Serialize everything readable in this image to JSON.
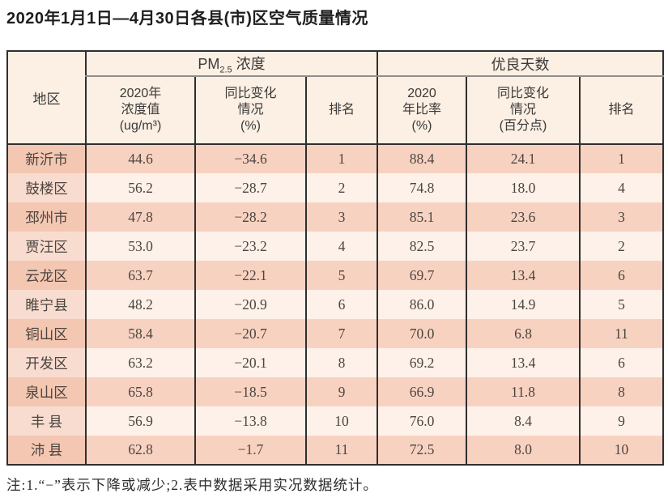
{
  "title": "2020年1月1日—4月30日各县(市)区空气质量情况",
  "table": {
    "header": {
      "region": "地区",
      "pm25_group": {
        "pre": "PM",
        "sub": "2.5",
        "post": " 浓度"
      },
      "good_days_group": "优良天数",
      "subcols": [
        "2020年\n浓度值\n(ug/m³)",
        "同比变化\n情况\n(%)",
        "排名",
        "2020\n年比率\n(%)",
        "同比变化\n情况\n(百分点)",
        "排名"
      ]
    },
    "rows": [
      {
        "region": "新沂市",
        "pm_value": "44.6",
        "pm_change": "−34.6",
        "pm_rank": "1",
        "good_ratio": "88.4",
        "good_change": "24.1",
        "good_rank": "1"
      },
      {
        "region": "鼓楼区",
        "pm_value": "56.2",
        "pm_change": "−28.7",
        "pm_rank": "2",
        "good_ratio": "74.8",
        "good_change": "18.0",
        "good_rank": "4"
      },
      {
        "region": "邳州市",
        "pm_value": "47.8",
        "pm_change": "−28.2",
        "pm_rank": "3",
        "good_ratio": "85.1",
        "good_change": "23.6",
        "good_rank": "3"
      },
      {
        "region": "贾汪区",
        "pm_value": "53.0",
        "pm_change": "−23.2",
        "pm_rank": "4",
        "good_ratio": "82.5",
        "good_change": "23.7",
        "good_rank": "2"
      },
      {
        "region": "云龙区",
        "pm_value": "63.7",
        "pm_change": "−22.1",
        "pm_rank": "5",
        "good_ratio": "69.7",
        "good_change": "13.4",
        "good_rank": "6"
      },
      {
        "region": "睢宁县",
        "pm_value": "48.2",
        "pm_change": "−20.9",
        "pm_rank": "6",
        "good_ratio": "86.0",
        "good_change": "14.9",
        "good_rank": "5"
      },
      {
        "region": "铜山区",
        "pm_value": "58.4",
        "pm_change": "−20.7",
        "pm_rank": "7",
        "good_ratio": "70.0",
        "good_change": "6.8",
        "good_rank": "11"
      },
      {
        "region": "开发区",
        "pm_value": "63.2",
        "pm_change": "−20.1",
        "pm_rank": "8",
        "good_ratio": "69.2",
        "good_change": "13.4",
        "good_rank": "6"
      },
      {
        "region": "泉山区",
        "pm_value": "65.8",
        "pm_change": "−18.5",
        "pm_rank": "9",
        "good_ratio": "66.9",
        "good_change": "11.8",
        "good_rank": "8"
      },
      {
        "region": "丰 县",
        "pm_value": "56.9",
        "pm_change": "−13.8",
        "pm_rank": "10",
        "good_ratio": "76.0",
        "good_change": "8.4",
        "good_rank": "9"
      },
      {
        "region": "沛 县",
        "pm_value": "62.8",
        "pm_change": "−1.7",
        "pm_rank": "11",
        "good_ratio": "72.5",
        "good_change": "8.0",
        "good_rank": "10"
      }
    ],
    "column_keys": [
      "region",
      "pm_value",
      "pm_change",
      "pm_rank",
      "good_ratio",
      "good_change",
      "good_rank"
    ]
  },
  "note": "注:1.“−”表示下降或减少;2.表中数据采用实况数据统计。",
  "colors": {
    "header_bg": "#fcefe3",
    "row_odd_bg": "#f8d2c1",
    "row_odd_region_bg": "#f4c7b2",
    "row_even_bg": "#fdf1e9",
    "row_even_region_bg": "#f9dcd0",
    "border_dark": "#2f2f2f",
    "border_gray": "#8f8f8f",
    "text_dark": "#4c4540"
  }
}
